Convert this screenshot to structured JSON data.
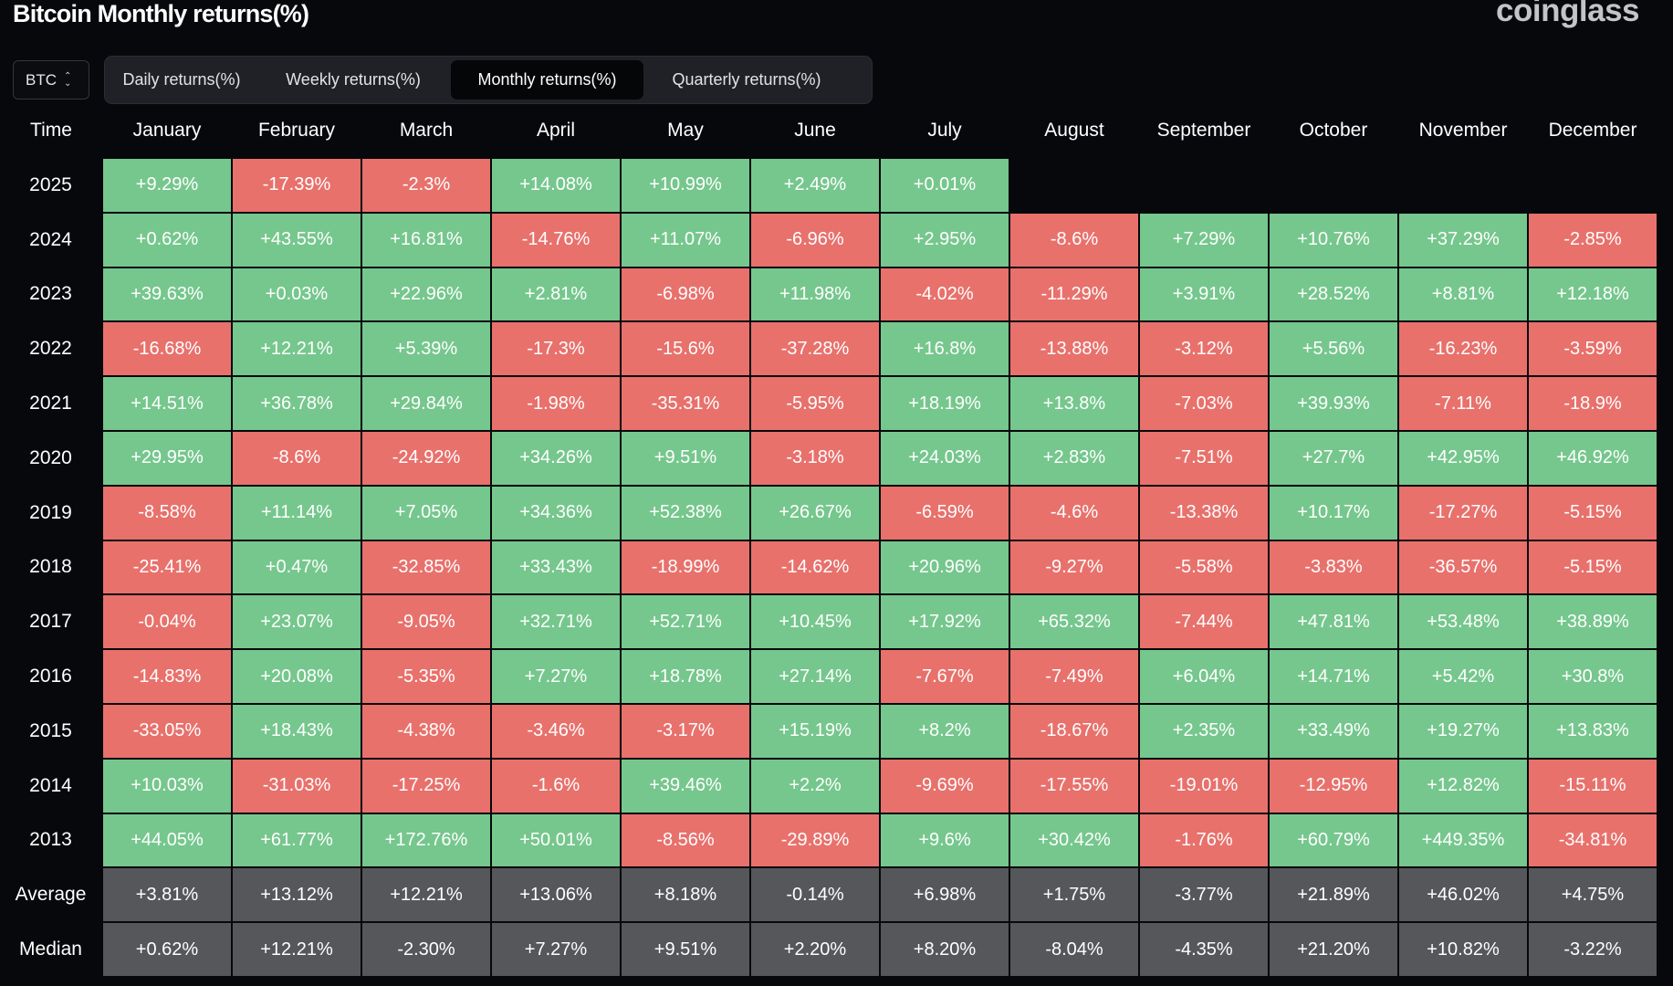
{
  "title": "Bitcoin Monthly returns(%)",
  "logo": "coinglass",
  "coin_select": {
    "value": "BTC"
  },
  "tabs": [
    {
      "label": "Daily returns(%)",
      "active": false
    },
    {
      "label": "Weekly returns(%)",
      "active": false
    },
    {
      "label": "Monthly returns(%)",
      "active": true
    },
    {
      "label": "Quarterly returns(%)",
      "active": false
    }
  ],
  "colors": {
    "positive": "#76c78d",
    "negative": "#e8716c",
    "stat": "#56575b",
    "background": "#07080c"
  },
  "table": {
    "header_label": "Time",
    "months": [
      "January",
      "February",
      "March",
      "April",
      "May",
      "June",
      "July",
      "August",
      "September",
      "October",
      "November",
      "December"
    ],
    "rows": [
      {
        "year": "2025",
        "values": [
          "+9.29%",
          "-17.39%",
          "-2.3%",
          "+14.08%",
          "+10.99%",
          "+2.49%",
          "+0.01%",
          "",
          "",
          "",
          "",
          ""
        ]
      },
      {
        "year": "2024",
        "values": [
          "+0.62%",
          "+43.55%",
          "+16.81%",
          "-14.76%",
          "+11.07%",
          "-6.96%",
          "+2.95%",
          "-8.6%",
          "+7.29%",
          "+10.76%",
          "+37.29%",
          "-2.85%"
        ]
      },
      {
        "year": "2023",
        "values": [
          "+39.63%",
          "+0.03%",
          "+22.96%",
          "+2.81%",
          "-6.98%",
          "+11.98%",
          "-4.02%",
          "-11.29%",
          "+3.91%",
          "+28.52%",
          "+8.81%",
          "+12.18%"
        ]
      },
      {
        "year": "2022",
        "values": [
          "-16.68%",
          "+12.21%",
          "+5.39%",
          "-17.3%",
          "-15.6%",
          "-37.28%",
          "+16.8%",
          "-13.88%",
          "-3.12%",
          "+5.56%",
          "-16.23%",
          "-3.59%"
        ]
      },
      {
        "year": "2021",
        "values": [
          "+14.51%",
          "+36.78%",
          "+29.84%",
          "-1.98%",
          "-35.31%",
          "-5.95%",
          "+18.19%",
          "+13.8%",
          "-7.03%",
          "+39.93%",
          "-7.11%",
          "-18.9%"
        ]
      },
      {
        "year": "2020",
        "values": [
          "+29.95%",
          "-8.6%",
          "-24.92%",
          "+34.26%",
          "+9.51%",
          "-3.18%",
          "+24.03%",
          "+2.83%",
          "-7.51%",
          "+27.7%",
          "+42.95%",
          "+46.92%"
        ]
      },
      {
        "year": "2019",
        "values": [
          "-8.58%",
          "+11.14%",
          "+7.05%",
          "+34.36%",
          "+52.38%",
          "+26.67%",
          "-6.59%",
          "-4.6%",
          "-13.38%",
          "+10.17%",
          "-17.27%",
          "-5.15%"
        ]
      },
      {
        "year": "2018",
        "values": [
          "-25.41%",
          "+0.47%",
          "-32.85%",
          "+33.43%",
          "-18.99%",
          "-14.62%",
          "+20.96%",
          "-9.27%",
          "-5.58%",
          "-3.83%",
          "-36.57%",
          "-5.15%"
        ]
      },
      {
        "year": "2017",
        "values": [
          "-0.04%",
          "+23.07%",
          "-9.05%",
          "+32.71%",
          "+52.71%",
          "+10.45%",
          "+17.92%",
          "+65.32%",
          "-7.44%",
          "+47.81%",
          "+53.48%",
          "+38.89%"
        ]
      },
      {
        "year": "2016",
        "values": [
          "-14.83%",
          "+20.08%",
          "-5.35%",
          "+7.27%",
          "+18.78%",
          "+27.14%",
          "-7.67%",
          "-7.49%",
          "+6.04%",
          "+14.71%",
          "+5.42%",
          "+30.8%"
        ]
      },
      {
        "year": "2015",
        "values": [
          "-33.05%",
          "+18.43%",
          "-4.38%",
          "-3.46%",
          "-3.17%",
          "+15.19%",
          "+8.2%",
          "-18.67%",
          "+2.35%",
          "+33.49%",
          "+19.27%",
          "+13.83%"
        ]
      },
      {
        "year": "2014",
        "values": [
          "+10.03%",
          "-31.03%",
          "-17.25%",
          "-1.6%",
          "+39.46%",
          "+2.2%",
          "-9.69%",
          "-17.55%",
          "-19.01%",
          "-12.95%",
          "+12.82%",
          "-15.11%"
        ]
      },
      {
        "year": "2013",
        "values": [
          "+44.05%",
          "+61.77%",
          "+172.76%",
          "+50.01%",
          "-8.56%",
          "-29.89%",
          "+9.6%",
          "+30.42%",
          "-1.76%",
          "+60.79%",
          "+449.35%",
          "-34.81%"
        ]
      }
    ],
    "stats": [
      {
        "label": "Average",
        "values": [
          "+3.81%",
          "+13.12%",
          "+12.21%",
          "+13.06%",
          "+8.18%",
          "-0.14%",
          "+6.98%",
          "+1.75%",
          "-3.77%",
          "+21.89%",
          "+46.02%",
          "+4.75%"
        ]
      },
      {
        "label": "Median",
        "values": [
          "+0.62%",
          "+12.21%",
          "-2.30%",
          "+7.27%",
          "+9.51%",
          "+2.20%",
          "+8.20%",
          "-8.04%",
          "-4.35%",
          "+21.20%",
          "+10.82%",
          "-3.22%"
        ]
      }
    ]
  }
}
